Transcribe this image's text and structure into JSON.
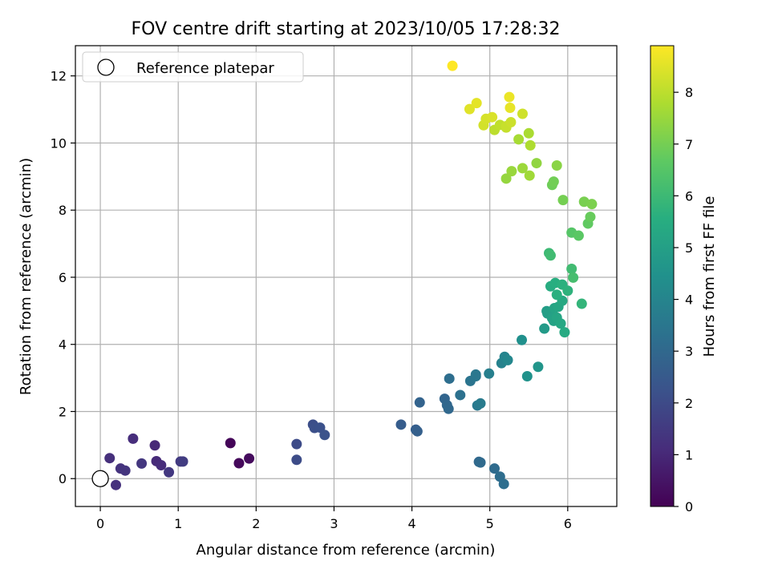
{
  "chart_data": {
    "type": "scatter",
    "title": "FOV centre drift starting at 2023/10/05 17:28:32",
    "xlabel": "Angular distance from reference (arcmin)",
    "ylabel": "Rotation from reference (arcmin)",
    "xlim": [
      -0.32,
      6.63
    ],
    "ylim": [
      -0.83,
      12.9
    ],
    "xticks": [
      "0",
      "1",
      "2",
      "3",
      "4",
      "5",
      "6"
    ],
    "yticks": [
      "0",
      "2",
      "4",
      "6",
      "8",
      "10",
      "12"
    ],
    "grid": true,
    "legend": {
      "placement": "top-left",
      "entries": [
        "Reference platepar"
      ]
    },
    "reference_point": {
      "x": 0,
      "y": 0
    },
    "colorbar": {
      "label": "Hours from first FF file",
      "colormap": "viridis",
      "range": [
        0,
        8.9
      ],
      "ticks": [
        "0",
        "1",
        "2",
        "3",
        "4",
        "5",
        "6",
        "7",
        "8"
      ]
    },
    "points": [
      [
        1.67,
        1.06,
        0.1
      ],
      [
        1.78,
        0.46,
        0.2
      ],
      [
        1.91,
        0.6,
        0.25
      ],
      [
        0.7,
        0.99,
        1.0
      ],
      [
        0.72,
        0.52,
        1.05
      ],
      [
        0.78,
        0.4,
        1.1
      ],
      [
        0.42,
        1.19,
        1.15
      ],
      [
        0.12,
        0.61,
        1.2
      ],
      [
        0.2,
        -0.19,
        1.25
      ],
      [
        0.26,
        0.3,
        1.3
      ],
      [
        0.32,
        0.24,
        1.35
      ],
      [
        0.53,
        0.45,
        1.4
      ],
      [
        0.88,
        0.19,
        1.45
      ],
      [
        1.03,
        0.51,
        1.5
      ],
      [
        1.06,
        0.51,
        1.55
      ],
      [
        2.52,
        1.03,
        2.0
      ],
      [
        2.52,
        0.56,
        2.05
      ],
      [
        2.73,
        1.61,
        2.1
      ],
      [
        2.75,
        1.51,
        2.15
      ],
      [
        2.82,
        1.52,
        2.2
      ],
      [
        2.88,
        1.3,
        2.25
      ],
      [
        3.86,
        1.61,
        2.6
      ],
      [
        4.05,
        1.46,
        2.65
      ],
      [
        4.07,
        1.41,
        2.7
      ],
      [
        4.1,
        2.27,
        2.8
      ],
      [
        4.42,
        2.38,
        2.9
      ],
      [
        4.45,
        2.19,
        2.95
      ],
      [
        4.47,
        2.08,
        3.0
      ],
      [
        4.86,
        0.5,
        3.0
      ],
      [
        4.88,
        0.48,
        3.05
      ],
      [
        5.06,
        0.3,
        3.1
      ],
      [
        5.13,
        0.06,
        3.15
      ],
      [
        5.18,
        -0.16,
        3.2
      ],
      [
        4.48,
        2.98,
        3.2
      ],
      [
        4.62,
        2.49,
        3.3
      ],
      [
        4.75,
        2.91,
        3.4
      ],
      [
        4.82,
        3.05,
        3.5
      ],
      [
        4.82,
        3.1,
        3.5
      ],
      [
        4.84,
        2.18,
        3.6
      ],
      [
        4.88,
        2.24,
        3.65
      ],
      [
        4.99,
        3.13,
        3.8
      ],
      [
        5.15,
        3.44,
        3.9
      ],
      [
        5.19,
        3.63,
        4.0
      ],
      [
        5.23,
        3.53,
        4.1
      ],
      [
        5.41,
        4.13,
        4.4
      ],
      [
        5.48,
        3.05,
        4.5
      ],
      [
        5.62,
        3.33,
        4.6
      ],
      [
        5.7,
        4.47,
        4.8
      ],
      [
        5.73,
        4.99,
        4.9
      ],
      [
        5.74,
        4.92,
        4.95
      ],
      [
        5.78,
        4.97,
        5.0
      ],
      [
        5.8,
        4.78,
        5.05
      ],
      [
        5.82,
        4.7,
        5.1
      ],
      [
        5.83,
        5.08,
        5.15
      ],
      [
        5.86,
        4.8,
        5.2
      ],
      [
        5.88,
        5.12,
        5.25
      ],
      [
        5.91,
        4.62,
        5.3
      ],
      [
        5.93,
        5.3,
        5.35
      ],
      [
        5.96,
        4.36,
        5.4
      ],
      [
        5.78,
        5.73,
        5.5
      ],
      [
        5.84,
        5.83,
        5.55
      ],
      [
        5.86,
        5.48,
        5.6
      ],
      [
        5.93,
        5.78,
        5.65
      ],
      [
        6.0,
        5.6,
        5.7
      ],
      [
        6.18,
        5.21,
        5.8
      ],
      [
        5.76,
        6.72,
        6.0
      ],
      [
        5.78,
        6.65,
        6.1
      ],
      [
        6.05,
        6.25,
        6.1
      ],
      [
        6.07,
        5.99,
        6.2
      ],
      [
        6.05,
        7.33,
        6.5
      ],
      [
        6.14,
        7.24,
        6.6
      ],
      [
        6.26,
        7.6,
        6.7
      ],
      [
        6.29,
        7.8,
        6.8
      ],
      [
        5.8,
        8.75,
        6.9
      ],
      [
        5.82,
        8.85,
        6.95
      ],
      [
        5.94,
        8.3,
        7.0
      ],
      [
        6.21,
        8.25,
        7.05
      ],
      [
        6.31,
        8.18,
        7.1
      ],
      [
        5.86,
        9.33,
        7.3
      ],
      [
        5.6,
        9.4,
        7.4
      ],
      [
        5.21,
        8.94,
        7.45
      ],
      [
        5.28,
        9.16,
        7.5
      ],
      [
        5.42,
        9.25,
        7.55
      ],
      [
        5.51,
        9.03,
        7.6
      ],
      [
        5.37,
        10.11,
        7.7
      ],
      [
        5.5,
        10.29,
        7.75
      ],
      [
        5.52,
        9.93,
        7.8
      ],
      [
        5.06,
        10.39,
        8.0
      ],
      [
        5.13,
        10.54,
        8.05
      ],
      [
        5.21,
        10.46,
        8.1
      ],
      [
        5.21,
        10.5,
        8.15
      ],
      [
        5.27,
        10.62,
        8.2
      ],
      [
        5.42,
        10.87,
        8.25
      ],
      [
        4.92,
        10.53,
        8.3
      ],
      [
        4.95,
        10.72,
        8.35
      ],
      [
        5.03,
        10.77,
        8.4
      ],
      [
        4.74,
        11.01,
        8.5
      ],
      [
        4.83,
        11.19,
        8.55
      ],
      [
        5.26,
        11.05,
        8.6
      ],
      [
        5.25,
        11.37,
        8.65
      ],
      [
        4.52,
        12.3,
        8.9
      ]
    ]
  }
}
